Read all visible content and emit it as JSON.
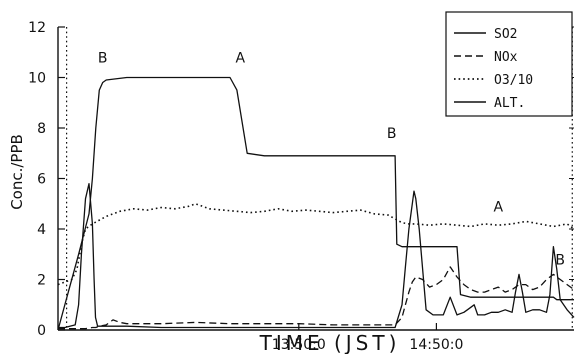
{
  "chart_data": {
    "type": "line",
    "xlabel": "TIME (JST)",
    "ylabel": "Conc./PPB",
    "xlim": [
      0,
      150
    ],
    "ylim": [
      0,
      12
    ],
    "y_ticks": [
      0,
      2,
      4,
      6,
      8,
      10,
      12
    ],
    "x_ticks": [
      {
        "value": 70,
        "label": "13:50:0"
      },
      {
        "value": 110,
        "label": "14:50:0"
      }
    ],
    "legend_position": "top-right",
    "grid": false,
    "series": [
      {
        "name": "SO2",
        "style": "solid",
        "x": [
          0,
          2,
          5,
          6,
          6.8,
          8,
          9,
          10,
          10.5,
          10.9,
          11.5,
          14,
          20,
          30,
          40,
          50,
          60,
          70,
          80,
          90,
          98,
          100,
          101,
          102,
          103,
          103.5,
          104,
          105,
          107,
          109,
          110,
          112,
          114,
          116,
          118,
          119,
          120,
          121,
          122,
          124,
          126,
          128,
          130,
          132,
          133,
          134,
          135,
          136,
          138,
          140,
          142,
          143,
          144,
          145,
          146,
          148,
          150
        ],
        "y": [
          0.1,
          0.1,
          0.2,
          1.0,
          3.0,
          5.2,
          5.8,
          4.2,
          2.0,
          0.5,
          0.15,
          0.15,
          0.15,
          0.1,
          0.1,
          0.1,
          0.1,
          0.1,
          0.1,
          0.1,
          0.1,
          1.0,
          2.5,
          4.0,
          5.0,
          5.5,
          5.2,
          4.0,
          0.8,
          0.6,
          0.6,
          0.6,
          1.3,
          0.6,
          0.7,
          0.8,
          0.9,
          1.0,
          0.6,
          0.6,
          0.7,
          0.7,
          0.8,
          0.7,
          1.5,
          2.2,
          1.5,
          0.7,
          0.8,
          0.8,
          0.7,
          1.4,
          3.3,
          2.4,
          1.2,
          0.8,
          0.5
        ]
      },
      {
        "name": "NOx",
        "style": "dashed",
        "x": [
          0,
          8,
          10,
          11,
          12,
          14,
          16,
          18,
          20,
          30,
          40,
          50,
          60,
          70,
          80,
          90,
          95,
          98,
          100,
          101,
          102,
          103,
          104,
          106,
          108,
          110,
          112,
          114,
          116,
          118,
          120,
          122,
          124,
          126,
          128,
          130,
          132,
          134,
          136,
          138,
          140,
          142,
          144,
          146,
          148,
          150
        ],
        "y": [
          0.05,
          0.05,
          0.1,
          0.1,
          0.15,
          0.2,
          0.4,
          0.3,
          0.25,
          0.25,
          0.3,
          0.25,
          0.25,
          0.25,
          0.2,
          0.2,
          0.2,
          0.2,
          0.5,
          1.0,
          1.5,
          1.9,
          2.1,
          2.0,
          1.7,
          1.8,
          2.0,
          2.5,
          2.1,
          1.8,
          1.6,
          1.5,
          1.5,
          1.6,
          1.7,
          1.5,
          1.6,
          1.8,
          1.8,
          1.6,
          1.7,
          2.0,
          2.2,
          2.0,
          1.8,
          1.6
        ]
      },
      {
        "name": "O3/10",
        "style": "dotted",
        "x": [
          0,
          2,
          4,
          5.5,
          7,
          8,
          10,
          14,
          18,
          22,
          26,
          30,
          34,
          38,
          40,
          44,
          48,
          52,
          56,
          60,
          64,
          68,
          72,
          76,
          80,
          84,
          88,
          92,
          96,
          98,
          100,
          102,
          104,
          108,
          112,
          116,
          120,
          124,
          128,
          132,
          136,
          140,
          144,
          148,
          150
        ],
        "y": [
          1.8,
          1.9,
          2.0,
          2.4,
          3.5,
          4.0,
          4.2,
          4.5,
          4.7,
          4.8,
          4.75,
          4.85,
          4.8,
          4.9,
          5.0,
          4.8,
          4.75,
          4.7,
          4.65,
          4.7,
          4.8,
          4.7,
          4.75,
          4.7,
          4.65,
          4.7,
          4.75,
          4.6,
          4.55,
          4.4,
          4.25,
          4.2,
          4.2,
          4.15,
          4.2,
          4.15,
          4.1,
          4.2,
          4.15,
          4.2,
          4.3,
          4.2,
          4.1,
          4.2,
          4.0
        ]
      },
      {
        "name": "ALT.",
        "style": "solid",
        "x": [
          0,
          3,
          6,
          9,
          10,
          11,
          12,
          13,
          14,
          20,
          30,
          40,
          50,
          52,
          55,
          60,
          70,
          80,
          85,
          90,
          95,
          98,
          98.5,
          100,
          110,
          114,
          116,
          117,
          120,
          130,
          140,
          144,
          145,
          146,
          150
        ],
        "y": [
          0,
          1.5,
          3.0,
          4.6,
          6.0,
          8.0,
          9.5,
          9.8,
          9.9,
          10.0,
          10.0,
          10.0,
          10.0,
          9.5,
          7.0,
          6.9,
          6.9,
          6.9,
          6.9,
          6.9,
          6.9,
          6.9,
          3.4,
          3.3,
          3.3,
          3.3,
          3.3,
          1.4,
          1.3,
          1.3,
          1.3,
          1.3,
          1.2,
          1.2,
          1.2
        ]
      }
    ],
    "vertical_markers": [
      {
        "x": 2.5,
        "style": "dotted"
      },
      {
        "x": 149.5,
        "style": "dotted"
      }
    ],
    "annotations": [
      {
        "text": "B",
        "x": 13,
        "y": 10.6
      },
      {
        "text": "A",
        "x": 53,
        "y": 10.6
      },
      {
        "text": "B",
        "x": 97,
        "y": 7.6
      },
      {
        "text": "A",
        "x": 128,
        "y": 4.7
      },
      {
        "text": "B",
        "x": 146,
        "y": 2.6
      }
    ]
  }
}
